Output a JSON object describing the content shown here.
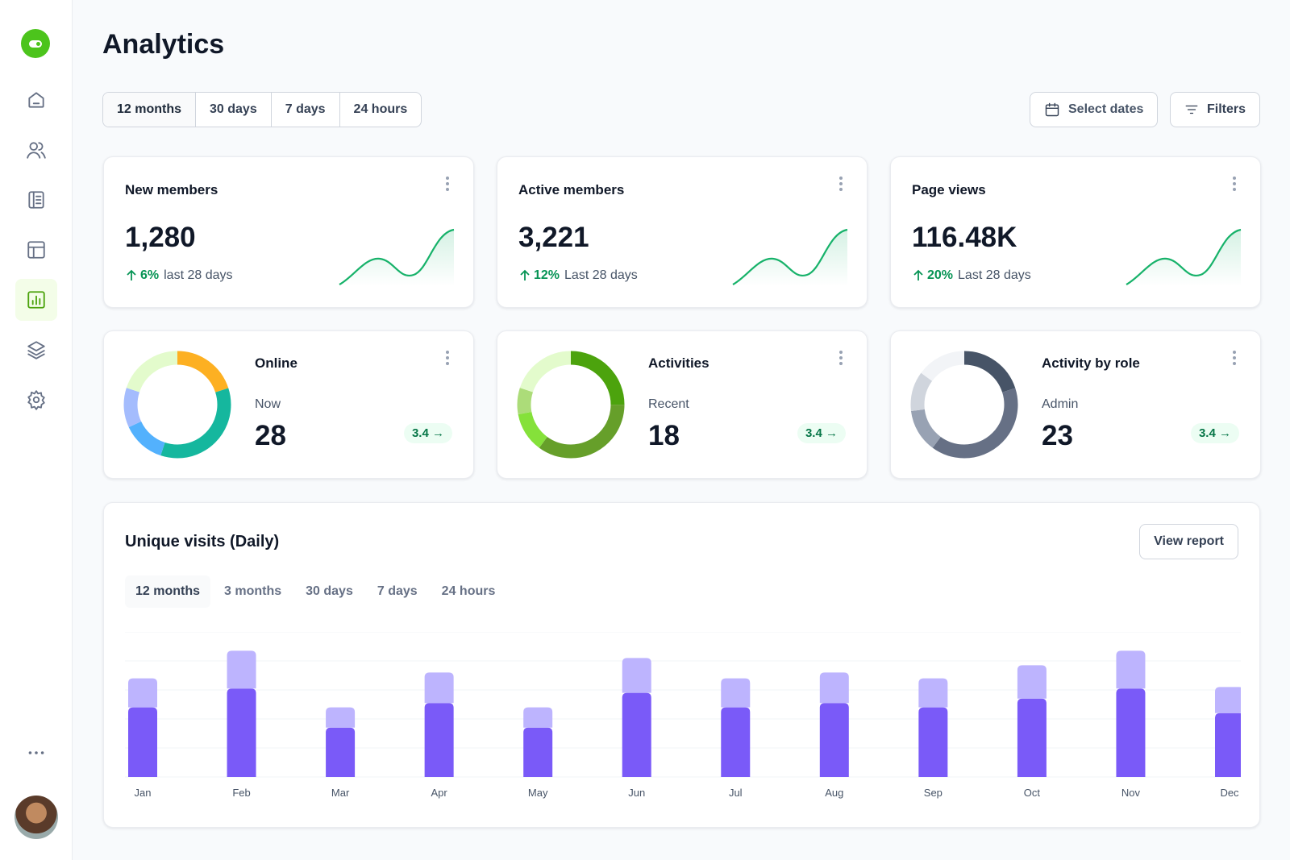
{
  "sidebar": {
    "items": [
      "home",
      "users",
      "reports",
      "layout",
      "analytics",
      "layers",
      "settings"
    ],
    "active": "analytics",
    "more_icon": "more-horizontal-icon"
  },
  "page": {
    "title": "Analytics"
  },
  "range_tabs": [
    "12 months",
    "30 days",
    "7 days",
    "24 hours"
  ],
  "range_selected": "12 months",
  "toolbar": {
    "select_dates": "Select dates",
    "filters": "Filters"
  },
  "stats": [
    {
      "title": "New members",
      "value": "1,280",
      "pct": "6%",
      "period": "last 28 days"
    },
    {
      "title": "Active members",
      "value": "3,221",
      "pct": "12%",
      "period": "Last 28 days"
    },
    {
      "title": "Page views",
      "value": "116.48K",
      "pct": "20%",
      "period": "Last 28 days"
    }
  ],
  "donuts": [
    {
      "title": "Online",
      "sub": "Now",
      "value": "28",
      "badge": "3.4",
      "segments": [
        [
          0.2,
          "#fdb022"
        ],
        [
          0.35,
          "#15b79e"
        ],
        [
          0.13,
          "#53b1fd"
        ],
        [
          0.12,
          "#a4bcfd"
        ],
        [
          0.2,
          "#e3fbcc"
        ]
      ]
    },
    {
      "title": "Activities",
      "sub": "Recent",
      "value": "18",
      "badge": "3.4",
      "segments": [
        [
          0.25,
          "#4ca30d"
        ],
        [
          0.35,
          "#669f2a"
        ],
        [
          0.12,
          "#85e13a"
        ],
        [
          0.08,
          "#acdc79"
        ],
        [
          0.2,
          "#e3fbcc"
        ]
      ]
    },
    {
      "title": "Activity by role",
      "sub": "Admin",
      "value": "23",
      "badge": "3.4",
      "segments": [
        [
          0.2,
          "#475467"
        ],
        [
          0.4,
          "#667085"
        ],
        [
          0.13,
          "#98a2b3"
        ],
        [
          0.12,
          "#d0d5dd"
        ],
        [
          0.15,
          "#f2f4f7"
        ]
      ]
    }
  ],
  "visits": {
    "title": "Unique visits (Daily)",
    "view_report": "View report",
    "tabs": [
      "12 months",
      "3 months",
      "30 days",
      "7 days",
      "24 hours"
    ],
    "selected": "12 months"
  },
  "chart_data": {
    "type": "bar",
    "stacked": true,
    "grid": true,
    "ylim": [
      0,
      5
    ],
    "categories": [
      "Jan",
      "Feb",
      "Mar",
      "Apr",
      "May",
      "Jun",
      "Jul",
      "Aug",
      "Sep",
      "Oct",
      "Nov",
      "Dec"
    ],
    "series": [
      {
        "values": [
          2.4,
          3.05,
          1.7,
          2.55,
          1.7,
          2.9,
          2.4,
          2.55,
          2.4,
          2.7,
          3.05,
          2.2
        ],
        "color": "#7a5af8"
      },
      {
        "values": [
          1.0,
          1.3,
          0.7,
          1.05,
          0.7,
          1.2,
          1.0,
          1.05,
          1.0,
          1.15,
          1.3,
          0.9
        ],
        "color": "#bdb4fe"
      }
    ]
  },
  "colors": {
    "accent": "#4cc41c",
    "positive": "#079455",
    "bar_primary": "#7a5af8",
    "bar_secondary": "#bdb4fe"
  }
}
